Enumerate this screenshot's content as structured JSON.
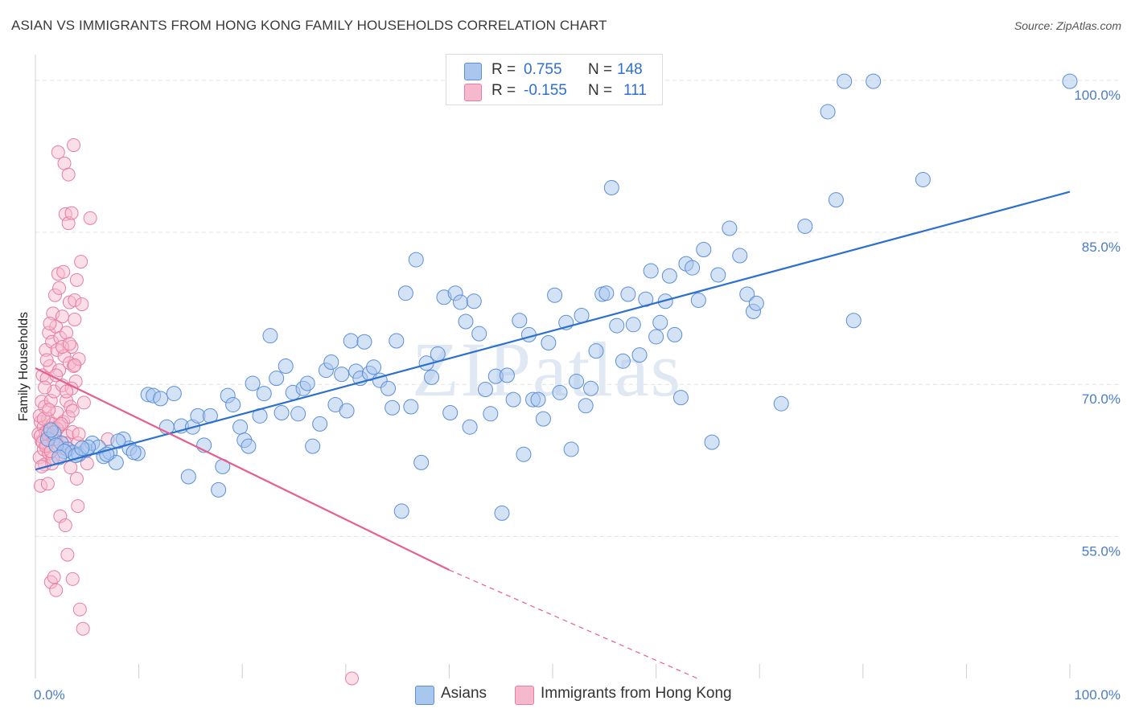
{
  "header": {
    "title": "ASIAN VS IMMIGRANTS FROM HONG KONG FAMILY HOUSEHOLDS CORRELATION CHART",
    "source": "Source: ZipAtlas.com"
  },
  "watermark": "ZIPatlas",
  "legend_top": {
    "series1": {
      "r_label": "R =",
      "r_value": "0.755",
      "n_label": "N =",
      "n_value": "148"
    },
    "series2": {
      "r_label": "R =",
      "r_value": "-0.155",
      "n_label": "N =",
      "n_value": "111"
    }
  },
  "legend_bottom": {
    "series1": "Asians",
    "series2": "Immigrants from Hong Kong"
  },
  "colors": {
    "asian_fill": "#a9c6ee",
    "asian_stroke": "#5a8fd8",
    "asian_line": "#2b6fcf",
    "hk_fill": "#f6b8cc",
    "hk_stroke": "#e77ea0",
    "hk_line": "#e5608d",
    "grid": "#e3e3e3",
    "axis_text": "#4a7cc7"
  },
  "chart_data": {
    "type": "scatter",
    "title": "ASIAN VS IMMIGRANTS FROM HONG KONG FAMILY HOUSEHOLDS CORRELATION CHART",
    "xlabel": "",
    "ylabel": "Family Households",
    "xlim": [
      0,
      100
    ],
    "ylim": [
      41,
      103
    ],
    "x_tick_labels": [
      "0.0%",
      "100.0%"
    ],
    "y_ticks": [
      55,
      70,
      85,
      100
    ],
    "y_tick_labels": [
      "55.0%",
      "70.0%",
      "85.0%",
      "100.0%"
    ],
    "grid": true,
    "series": [
      {
        "name": "Asians",
        "r": 0.755,
        "n": 148,
        "trend": {
          "x": [
            0,
            100
          ],
          "y": [
            61.6,
            89.0
          ]
        },
        "points": [
          [
            1.2,
            64.6
          ],
          [
            1.8,
            65.2
          ],
          [
            2.5,
            64.2
          ],
          [
            3.1,
            63.6
          ],
          [
            3.6,
            63.3
          ],
          [
            4.2,
            63.1
          ],
          [
            4.9,
            63.5
          ],
          [
            5.5,
            64.2
          ],
          [
            6.1,
            63.8
          ],
          [
            6.6,
            62.9
          ],
          [
            7.2,
            63.3
          ],
          [
            7.8,
            62.3
          ],
          [
            8.5,
            64.6
          ],
          [
            9.1,
            63.7
          ],
          [
            9.9,
            63.2
          ],
          [
            10.9,
            69.0
          ],
          [
            11.4,
            68.9
          ],
          [
            12.1,
            68.6
          ],
          [
            12.7,
            65.8
          ],
          [
            13.4,
            69.1
          ],
          [
            14.1,
            65.9
          ],
          [
            14.8,
            60.9
          ],
          [
            15.2,
            65.8
          ],
          [
            15.7,
            66.9
          ],
          [
            16.3,
            64.0
          ],
          [
            16.9,
            66.9
          ],
          [
            17.7,
            59.6
          ],
          [
            18.1,
            61.9
          ],
          [
            18.6,
            68.9
          ],
          [
            19.1,
            68.0
          ],
          [
            19.8,
            65.8
          ],
          [
            20.2,
            64.5
          ],
          [
            20.6,
            63.9
          ],
          [
            21.0,
            70.1
          ],
          [
            21.7,
            66.9
          ],
          [
            22.1,
            69.1
          ],
          [
            22.7,
            74.8
          ],
          [
            23.3,
            70.6
          ],
          [
            23.8,
            67.2
          ],
          [
            24.2,
            71.8
          ],
          [
            24.9,
            69.2
          ],
          [
            25.4,
            67.1
          ],
          [
            25.9,
            69.6
          ],
          [
            26.3,
            70.1
          ],
          [
            26.8,
            63.9
          ],
          [
            27.5,
            66.1
          ],
          [
            28.1,
            71.4
          ],
          [
            28.6,
            72.2
          ],
          [
            29.0,
            68.0
          ],
          [
            29.6,
            71.0
          ],
          [
            30.1,
            67.4
          ],
          [
            30.5,
            74.3
          ],
          [
            31.0,
            71.3
          ],
          [
            31.4,
            70.6
          ],
          [
            31.8,
            74.2
          ],
          [
            32.3,
            71.1
          ],
          [
            32.7,
            71.7
          ],
          [
            33.3,
            70.4
          ],
          [
            34.1,
            69.6
          ],
          [
            34.5,
            67.7
          ],
          [
            34.9,
            74.3
          ],
          [
            35.4,
            57.5
          ],
          [
            35.8,
            79.0
          ],
          [
            36.3,
            67.8
          ],
          [
            36.8,
            82.3
          ],
          [
            37.3,
            62.3
          ],
          [
            37.8,
            72.1
          ],
          [
            38.3,
            70.7
          ],
          [
            38.9,
            73.0
          ],
          [
            39.5,
            78.6
          ],
          [
            40.1,
            67.2
          ],
          [
            40.6,
            79.0
          ],
          [
            41.1,
            78.1
          ],
          [
            41.6,
            76.2
          ],
          [
            42.0,
            65.8
          ],
          [
            42.4,
            78.2
          ],
          [
            42.9,
            75.0
          ],
          [
            43.5,
            69.5
          ],
          [
            44.0,
            67.1
          ],
          [
            44.5,
            70.8
          ],
          [
            45.1,
            57.3
          ],
          [
            45.6,
            70.9
          ],
          [
            46.2,
            68.5
          ],
          [
            46.8,
            76.3
          ],
          [
            47.2,
            63.1
          ],
          [
            47.7,
            74.9
          ],
          [
            48.1,
            68.5
          ],
          [
            48.6,
            68.5
          ],
          [
            49.1,
            66.6
          ],
          [
            49.6,
            74.1
          ],
          [
            50.2,
            78.8
          ],
          [
            50.7,
            69.2
          ],
          [
            51.3,
            76.1
          ],
          [
            51.8,
            63.6
          ],
          [
            52.3,
            70.3
          ],
          [
            52.8,
            76.8
          ],
          [
            53.2,
            67.9
          ],
          [
            53.7,
            69.6
          ],
          [
            54.2,
            73.3
          ],
          [
            54.8,
            78.9
          ],
          [
            55.2,
            79.0
          ],
          [
            55.7,
            89.4
          ],
          [
            56.2,
            75.8
          ],
          [
            56.8,
            72.3
          ],
          [
            57.3,
            78.9
          ],
          [
            57.8,
            75.9
          ],
          [
            58.4,
            72.9
          ],
          [
            59.0,
            78.4
          ],
          [
            59.5,
            81.2
          ],
          [
            60.0,
            74.7
          ],
          [
            60.4,
            76.1
          ],
          [
            60.9,
            78.2
          ],
          [
            61.3,
            80.7
          ],
          [
            61.8,
            74.9
          ],
          [
            62.4,
            68.7
          ],
          [
            62.9,
            81.9
          ],
          [
            63.5,
            81.5
          ],
          [
            64.1,
            78.3
          ],
          [
            64.6,
            83.3
          ],
          [
            65.4,
            64.3
          ],
          [
            66.0,
            80.8
          ],
          [
            67.1,
            85.4
          ],
          [
            68.1,
            82.7
          ],
          [
            68.8,
            78.9
          ],
          [
            69.4,
            77.2
          ],
          [
            69.7,
            78.0
          ],
          [
            72.1,
            68.1
          ],
          [
            74.4,
            85.6
          ],
          [
            76.6,
            96.9
          ],
          [
            77.4,
            88.2
          ],
          [
            78.2,
            99.9
          ],
          [
            79.1,
            76.3
          ],
          [
            81.0,
            99.9
          ],
          [
            85.8,
            90.2
          ],
          [
            100.0,
            99.9
          ],
          [
            2.0,
            64.0
          ],
          [
            2.8,
            63.4
          ],
          [
            3.9,
            63.0
          ],
          [
            5.1,
            63.8
          ],
          [
            6.9,
            63.1
          ],
          [
            8.0,
            64.4
          ],
          [
            9.5,
            63.3
          ],
          [
            1.5,
            65.5
          ],
          [
            4.5,
            63.7
          ],
          [
            2.3,
            62.8
          ]
        ]
      },
      {
        "name": "Immigrants from Hong Kong",
        "r": -0.155,
        "n": 111,
        "trend": {
          "x": [
            0,
            40
          ],
          "y": [
            71.6,
            51.7
          ]
        },
        "trend_dashed": {
          "x": [
            40,
            64
          ],
          "y": [
            51.7,
            41.0
          ]
        },
        "points": [
          [
            0.3,
            65.1
          ],
          [
            0.4,
            62.8
          ],
          [
            0.5,
            66.3
          ],
          [
            0.5,
            60.0
          ],
          [
            0.6,
            68.3
          ],
          [
            0.6,
            64.4
          ],
          [
            0.7,
            70.9
          ],
          [
            0.8,
            65.8
          ],
          [
            0.8,
            63.6
          ],
          [
            0.9,
            62.1
          ],
          [
            0.9,
            67.8
          ],
          [
            1.0,
            73.4
          ],
          [
            1.0,
            65.3
          ],
          [
            1.1,
            64.0
          ],
          [
            1.1,
            70.6
          ],
          [
            1.2,
            60.2
          ],
          [
            1.2,
            66.6
          ],
          [
            1.3,
            75.1
          ],
          [
            1.3,
            63.2
          ],
          [
            1.4,
            71.8
          ],
          [
            1.4,
            65.7
          ],
          [
            1.5,
            50.5
          ],
          [
            1.5,
            68.4
          ],
          [
            1.6,
            74.2
          ],
          [
            1.6,
            62.2
          ],
          [
            1.7,
            77.0
          ],
          [
            1.7,
            66.1
          ],
          [
            1.8,
            69.3
          ],
          [
            1.8,
            51.0
          ],
          [
            1.9,
            78.8
          ],
          [
            1.9,
            64.9
          ],
          [
            2.0,
            75.7
          ],
          [
            2.0,
            49.7
          ],
          [
            2.1,
            73.4
          ],
          [
            2.1,
            67.2
          ],
          [
            2.2,
            92.9
          ],
          [
            2.2,
            80.9
          ],
          [
            2.3,
            71.4
          ],
          [
            2.3,
            65.9
          ],
          [
            2.4,
            57.0
          ],
          [
            2.4,
            74.6
          ],
          [
            2.5,
            63.1
          ],
          [
            2.6,
            76.7
          ],
          [
            2.6,
            69.9
          ],
          [
            2.7,
            81.1
          ],
          [
            2.7,
            66.3
          ],
          [
            2.8,
            91.8
          ],
          [
            2.8,
            72.8
          ],
          [
            2.9,
            56.1
          ],
          [
            2.9,
            86.8
          ],
          [
            3.0,
            68.4
          ],
          [
            3.0,
            75.1
          ],
          [
            3.1,
            64.9
          ],
          [
            3.1,
            53.2
          ],
          [
            3.2,
            90.7
          ],
          [
            3.2,
            85.9
          ],
          [
            3.3,
            78.1
          ],
          [
            3.3,
            72.1
          ],
          [
            3.4,
            61.8
          ],
          [
            3.4,
            67.8
          ],
          [
            3.5,
            73.7
          ],
          [
            3.5,
            86.9
          ],
          [
            3.6,
            50.8
          ],
          [
            3.6,
            65.3
          ],
          [
            3.7,
            93.6
          ],
          [
            3.7,
            71.8
          ],
          [
            3.8,
            78.3
          ],
          [
            3.8,
            76.4
          ],
          [
            3.9,
            70.3
          ],
          [
            4.0,
            80.3
          ],
          [
            4.1,
            58.0
          ],
          [
            4.1,
            64.2
          ],
          [
            4.2,
            72.5
          ],
          [
            4.3,
            47.8
          ],
          [
            4.4,
            82.1
          ],
          [
            4.5,
            77.9
          ],
          [
            4.6,
            45.9
          ],
          [
            4.7,
            68.2
          ],
          [
            5.0,
            62.2
          ],
          [
            5.3,
            86.4
          ],
          [
            7.0,
            64.6
          ],
          [
            30.6,
            41.0
          ],
          [
            0.4,
            66.9
          ],
          [
            0.6,
            61.9
          ],
          [
            0.9,
            69.7
          ],
          [
            1.1,
            72.4
          ],
          [
            1.4,
            76.0
          ],
          [
            1.7,
            62.7
          ],
          [
            2.0,
            70.9
          ],
          [
            2.3,
            79.5
          ],
          [
            2.6,
            73.7
          ],
          [
            2.9,
            64.2
          ],
          [
            3.2,
            66.8
          ],
          [
            3.5,
            69.6
          ],
          [
            3.8,
            71.9
          ],
          [
            4.0,
            60.7
          ],
          [
            0.5,
            64.9
          ],
          [
            0.7,
            64.3
          ],
          [
            0.8,
            66.6
          ],
          [
            1.0,
            63.9
          ],
          [
            1.2,
            65.1
          ],
          [
            1.3,
            67.5
          ],
          [
            1.5,
            63.4
          ],
          [
            1.8,
            64.6
          ],
          [
            2.1,
            65.6
          ],
          [
            2.5,
            66.1
          ],
          [
            2.7,
            63.7
          ],
          [
            3.0,
            69.3
          ],
          [
            3.3,
            74.0
          ],
          [
            3.6,
            67.4
          ],
          [
            4.2,
            65.1
          ]
        ]
      }
    ]
  }
}
